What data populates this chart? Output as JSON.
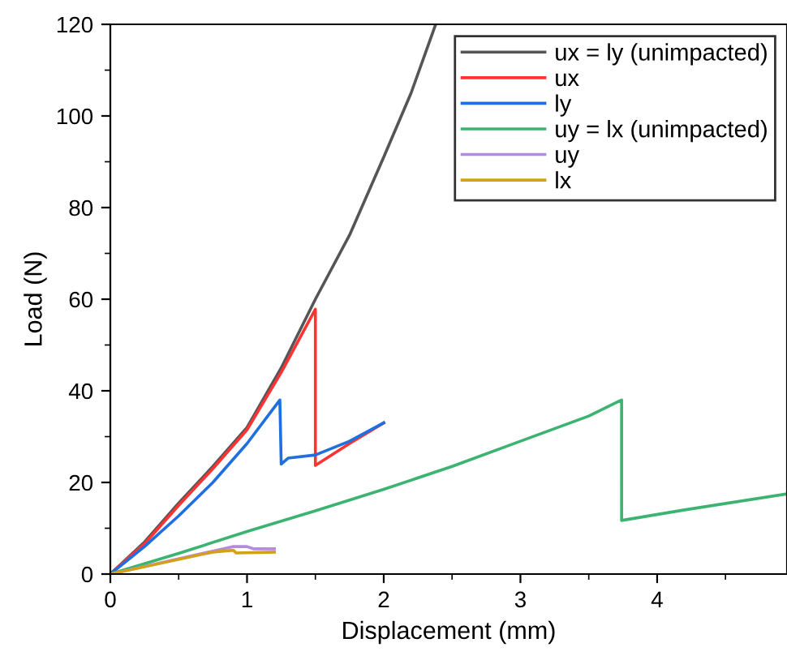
{
  "chart_data": {
    "type": "line",
    "xlabel": "Displacement (mm)",
    "ylabel": "Load (N)",
    "xlim": [
      0,
      4.95
    ],
    "ylim": [
      0,
      120
    ],
    "xticks": [
      0,
      1,
      2,
      3,
      4
    ],
    "yticks": [
      0,
      20,
      40,
      60,
      80,
      100,
      120
    ],
    "grid": false,
    "legend": "top right",
    "series": [
      {
        "name": "ux = ly (unimpacted)",
        "color": "#555555",
        "x": [
          0,
          0.25,
          0.5,
          0.75,
          1,
          1.25,
          1.5,
          1.75,
          2,
          2.2,
          2.38
        ],
        "values": [
          0,
          7,
          15.5,
          23.5,
          32,
          45,
          60,
          74,
          91,
          105,
          120
        ]
      },
      {
        "name": "ux",
        "color": "#ff3333",
        "x": [
          0,
          0.25,
          0.5,
          0.75,
          1,
          1.25,
          1.5,
          1.5,
          1.75,
          2
        ],
        "values": [
          0,
          6.6,
          15,
          23,
          31.5,
          44,
          57.8,
          23.7,
          28.5,
          33
        ]
      },
      {
        "name": "ly",
        "color": "#1f6fe0",
        "x": [
          0,
          0.25,
          0.5,
          0.75,
          1,
          1.24,
          1.25,
          1.3,
          1.5,
          1.75,
          2
        ],
        "values": [
          0,
          6,
          12.7,
          20,
          28.5,
          38,
          24,
          25.3,
          26,
          29,
          33
        ]
      },
      {
        "name": "uy = lx (unimpacted)",
        "color": "#3cb371",
        "x": [
          0,
          0.5,
          1,
          1.5,
          2,
          2.5,
          3,
          3.5,
          3.74,
          3.74,
          4.2,
          4.95
        ],
        "values": [
          0,
          4.5,
          9.3,
          13.8,
          18.5,
          23.5,
          29,
          34.5,
          38,
          11.7,
          14,
          17.5
        ]
      },
      {
        "name": "uy",
        "color": "#b38be0",
        "x": [
          0,
          0.75,
          0.9,
          1,
          1.05,
          1.2
        ],
        "values": [
          0,
          5,
          6,
          6,
          5.5,
          5.5
        ]
      },
      {
        "name": "lx",
        "color": "#d4a017",
        "x": [
          0,
          0.75,
          0.9,
          0.92,
          1.2
        ],
        "values": [
          0,
          4.8,
          5.2,
          4.6,
          4.8
        ]
      }
    ]
  }
}
